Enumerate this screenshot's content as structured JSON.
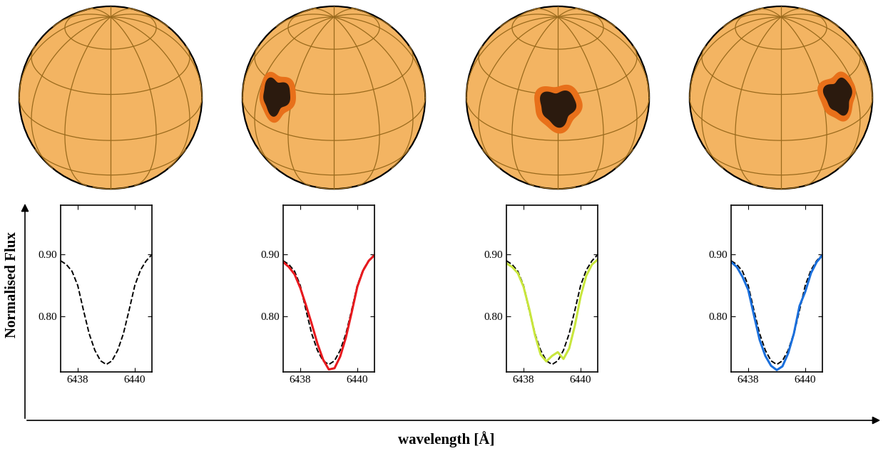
{
  "figure": {
    "xlabel": "wavelength [Å]",
    "ylabel": "Normalised Flux"
  },
  "chart_data": [
    {
      "type": "line",
      "x": [
        6437.4,
        6437.6,
        6437.8,
        6438.0,
        6438.2,
        6438.4,
        6438.6,
        6438.8,
        6439.0,
        6439.2,
        6439.4,
        6439.6,
        6439.8,
        6440.0,
        6440.2,
        6440.4,
        6440.6
      ],
      "xlim": [
        6437.4,
        6440.6
      ],
      "ylim": [
        0.71,
        0.98
      ],
      "xticks": [
        6438,
        6440
      ],
      "yticks": [
        {
          "value": 0.8,
          "label": "0.80"
        },
        {
          "value": 0.9,
          "label": "0.90"
        }
      ],
      "series": [
        {
          "color": "#000000",
          "line_style": "dashed",
          "values": [
            0.89,
            0.884,
            0.873,
            0.85,
            0.81,
            0.772,
            0.745,
            0.728,
            0.722,
            0.728,
            0.745,
            0.772,
            0.81,
            0.85,
            0.875,
            0.89,
            0.9
          ]
        }
      ]
    },
    {
      "type": "line",
      "x": [
        6437.4,
        6437.6,
        6437.8,
        6438.0,
        6438.2,
        6438.4,
        6438.6,
        6438.8,
        6439.0,
        6439.2,
        6439.4,
        6439.6,
        6439.8,
        6440.0,
        6440.2,
        6440.4,
        6440.6
      ],
      "xlim": [
        6437.4,
        6440.6
      ],
      "ylim": [
        0.71,
        0.98
      ],
      "xticks": [
        6438,
        6440
      ],
      "yticks": [
        {
          "value": 0.8,
          "label": "0.80"
        },
        {
          "value": 0.9,
          "label": "0.90"
        }
      ],
      "series": [
        {
          "color": "#000000",
          "line_style": "dashed",
          "values": [
            0.89,
            0.884,
            0.873,
            0.85,
            0.81,
            0.772,
            0.745,
            0.728,
            0.722,
            0.728,
            0.745,
            0.772,
            0.81,
            0.85,
            0.875,
            0.89,
            0.9
          ]
        },
        {
          "color": "#e8191e",
          "line_style": "solid",
          "values": [
            0.888,
            0.88,
            0.868,
            0.846,
            0.818,
            0.788,
            0.756,
            0.73,
            0.714,
            0.716,
            0.735,
            0.766,
            0.806,
            0.848,
            0.874,
            0.89,
            0.899
          ]
        }
      ]
    },
    {
      "type": "line",
      "x": [
        6437.4,
        6437.6,
        6437.8,
        6438.0,
        6438.2,
        6438.4,
        6438.6,
        6438.8,
        6439.0,
        6439.2,
        6439.4,
        6439.6,
        6439.8,
        6440.0,
        6440.2,
        6440.4,
        6440.6
      ],
      "xlim": [
        6437.4,
        6440.6
      ],
      "ylim": [
        0.71,
        0.98
      ],
      "xticks": [
        6438,
        6440
      ],
      "yticks": [
        {
          "value": 0.8,
          "label": "0.80"
        },
        {
          "value": 0.9,
          "label": "0.90"
        }
      ],
      "series": [
        {
          "color": "#000000",
          "line_style": "dashed",
          "values": [
            0.89,
            0.884,
            0.873,
            0.85,
            0.81,
            0.772,
            0.745,
            0.728,
            0.722,
            0.728,
            0.745,
            0.772,
            0.81,
            0.85,
            0.875,
            0.89,
            0.9
          ]
        },
        {
          "color": "#c8e63c",
          "line_style": "solid",
          "values": [
            0.886,
            0.88,
            0.87,
            0.848,
            0.812,
            0.77,
            0.738,
            0.727,
            0.736,
            0.742,
            0.731,
            0.748,
            0.785,
            0.832,
            0.866,
            0.884,
            0.892
          ]
        }
      ]
    },
    {
      "type": "line",
      "x": [
        6437.4,
        6437.6,
        6437.8,
        6438.0,
        6438.2,
        6438.4,
        6438.6,
        6438.8,
        6439.0,
        6439.2,
        6439.4,
        6439.6,
        6439.8,
        6440.0,
        6440.2,
        6440.4,
        6440.6
      ],
      "xlim": [
        6437.4,
        6440.6
      ],
      "ylim": [
        0.71,
        0.98
      ],
      "xticks": [
        6438,
        6440
      ],
      "yticks": [
        {
          "value": 0.8,
          "label": "0.80"
        },
        {
          "value": 0.9,
          "label": "0.90"
        }
      ],
      "series": [
        {
          "color": "#000000",
          "line_style": "dashed",
          "values": [
            0.89,
            0.884,
            0.873,
            0.85,
            0.81,
            0.772,
            0.745,
            0.728,
            0.722,
            0.728,
            0.745,
            0.772,
            0.81,
            0.85,
            0.875,
            0.89,
            0.9
          ]
        },
        {
          "color": "#1a6fdc",
          "line_style": "solid",
          "values": [
            0.888,
            0.88,
            0.864,
            0.843,
            0.802,
            0.762,
            0.736,
            0.72,
            0.713,
            0.719,
            0.74,
            0.772,
            0.817,
            0.84,
            0.87,
            0.888,
            0.899
          ]
        }
      ]
    }
  ]
}
